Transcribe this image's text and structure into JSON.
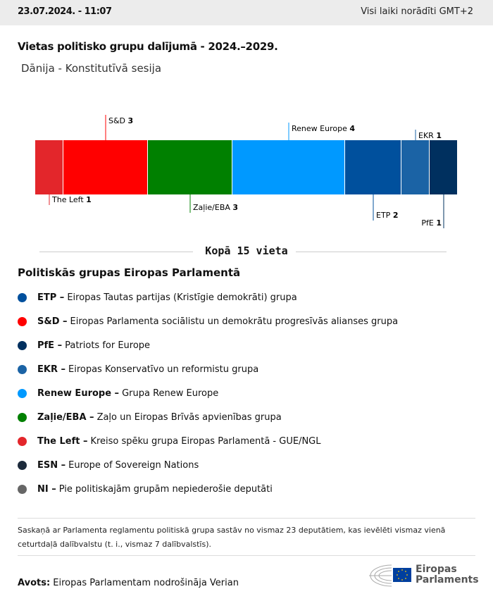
{
  "header": {
    "datetime": "23.07.2024. - 11:07",
    "timezone_note": "Visi laiki norādīti GMT+2"
  },
  "title": "Vietas politisko grupu dalījumā - 2024.–2029.",
  "subtitle": "Dānija - Konstitutīvā sesija",
  "chart_data": {
    "type": "bar",
    "orientation": "stacked-horizontal",
    "categories": [
      "The Left",
      "S&D",
      "Zaļie/EBA",
      "Renew Europe",
      "ETP",
      "EKR",
      "PfE"
    ],
    "values": [
      1,
      3,
      3,
      4,
      2,
      1,
      1
    ],
    "colors": [
      "#e3262b",
      "#ff0000",
      "#008000",
      "#0099ff",
      "#00509d",
      "#1b63a5",
      "#00305f"
    ],
    "label_side": [
      "below",
      "above",
      "below",
      "above",
      "below",
      "above",
      "below"
    ],
    "total": 15
  },
  "total_label": "Kopā 15 vieta",
  "legend": {
    "title": "Politiskās grupas Eiropas Parlamentā",
    "items": [
      {
        "abbr": "ETP –",
        "name": "Eiropas Tautas partijas (Kristīgie demokrāti) grupa",
        "color": "#00509d"
      },
      {
        "abbr": "S&D –",
        "name": "Eiropas Parlamenta sociālistu un demokrātu progresīvās alianses grupa",
        "color": "#ff0000"
      },
      {
        "abbr": "PfE –",
        "name": "Patriots for Europe",
        "color": "#00305f"
      },
      {
        "abbr": "EKR –",
        "name": "Eiropas Konservatīvo un reformistu grupa",
        "color": "#1b63a5"
      },
      {
        "abbr": "Renew Europe –",
        "name": "Grupa Renew Europe",
        "color": "#0099ff"
      },
      {
        "abbr": "Zaļie/EBA –",
        "name": "Zaļo un Eiropas Brīvās apvienības grupa",
        "color": "#008000"
      },
      {
        "abbr": "The Left –",
        "name": "Kreiso spēku grupa Eiropas Parlamentā - GUE/NGL",
        "color": "#e3262b"
      },
      {
        "abbr": "ESN –",
        "name": "Europe of Sovereign Nations",
        "color": "#1c2a3b"
      },
      {
        "abbr": "NI –",
        "name": "Pie politiskajām grupām nepiederošie deputāti",
        "color": "#666666"
      }
    ]
  },
  "note": "Saskaņā ar Parlamenta reglamentu politiskā grupa sastāv no vismaz 23 deputātiem, kas ievēlēti vismaz vienā ceturtdaļā dalībvalstu (t. i., vismaz 7 dalībvalstīs).",
  "source": {
    "label": "Avots:",
    "text": "Eiropas Parlamentam nodrošināja Verian"
  },
  "logo": {
    "line1": "Eiropas",
    "line2": "Parlaments"
  }
}
